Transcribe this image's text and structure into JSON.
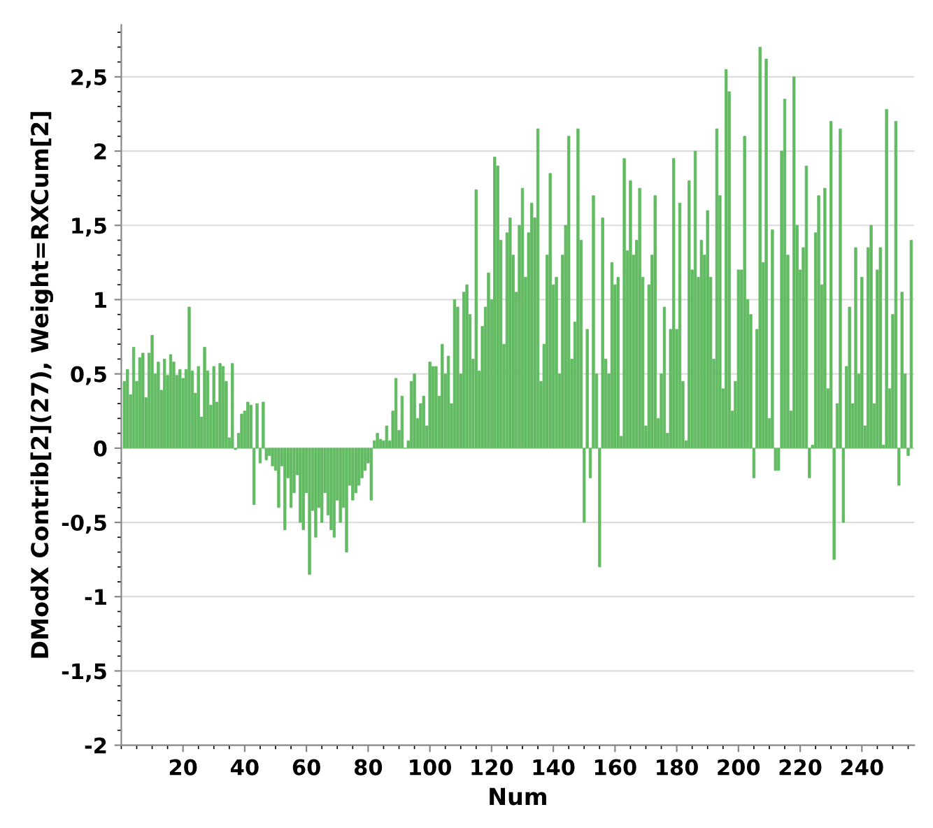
{
  "chart_data": {
    "type": "bar",
    "xlabel": "Num",
    "ylabel": "DModX Contrib[2](27), Weight=RXCum[2]",
    "color": "#62bb62",
    "x": [
      1,
      2,
      3,
      4,
      5,
      6,
      7,
      8,
      9,
      10,
      11,
      12,
      13,
      14,
      15,
      16,
      17,
      18,
      19,
      20,
      21,
      22,
      23,
      24,
      25,
      26,
      27,
      28,
      29,
      30,
      31,
      32,
      33,
      34,
      35,
      36,
      37,
      38,
      39,
      40,
      41,
      42,
      43,
      44,
      45,
      46,
      47,
      48,
      49,
      50,
      51,
      52,
      53,
      54,
      55,
      56,
      57,
      58,
      59,
      60,
      61,
      62,
      63,
      64,
      65,
      66,
      67,
      68,
      69,
      70,
      71,
      72,
      73,
      74,
      75,
      76,
      77,
      78,
      79,
      80,
      81,
      82,
      83,
      84,
      85,
      86,
      87,
      88,
      89,
      90,
      91,
      92,
      93,
      94,
      95,
      96,
      97,
      98,
      99,
      100,
      101,
      102,
      103,
      104,
      105,
      106,
      107,
      108,
      109,
      110,
      111,
      112,
      113,
      114,
      115,
      116,
      117,
      118,
      119,
      120,
      121,
      122,
      123,
      124,
      125,
      126,
      127,
      128,
      129,
      130,
      131,
      132,
      133,
      134,
      135,
      136,
      137,
      138,
      139,
      140,
      141,
      142,
      143,
      144,
      145,
      146,
      147,
      148,
      149,
      150,
      151,
      152,
      153,
      154,
      155,
      156,
      157,
      158,
      159,
      160,
      161,
      162,
      163,
      164,
      165,
      166,
      167,
      168,
      169,
      170,
      171,
      172,
      173,
      174,
      175,
      176,
      177,
      178,
      179,
      180,
      181,
      182,
      183,
      184,
      185,
      186,
      187,
      188,
      189,
      190,
      191,
      192,
      193,
      194,
      195,
      196,
      197,
      198,
      199,
      200,
      201,
      202,
      203,
      204,
      205,
      206,
      207,
      208,
      209,
      210,
      211,
      212,
      213,
      214,
      215,
      216,
      217,
      218,
      219,
      220,
      221,
      222,
      223,
      224,
      225,
      226,
      227,
      228,
      229,
      230,
      231,
      232,
      233,
      234,
      235,
      236,
      237,
      238,
      239,
      240,
      241,
      242,
      243,
      244,
      245,
      246,
      247,
      248,
      249,
      250,
      251,
      252,
      253,
      254,
      255,
      256
    ],
    "values": [
      0.45,
      0.53,
      0.36,
      0.68,
      0.45,
      0.61,
      0.64,
      0.34,
      0.64,
      0.76,
      0.5,
      0.58,
      0.39,
      0.6,
      0.49,
      0.63,
      0.58,
      0.49,
      0.53,
      0.47,
      0.53,
      0.95,
      0.52,
      0.37,
      0.55,
      0.21,
      0.68,
      0.52,
      0.29,
      0.55,
      0.31,
      0.57,
      0.55,
      0.45,
      0.07,
      0.57,
      -0.01,
      0.1,
      0.23,
      0.25,
      0.31,
      0.29,
      -0.38,
      0.3,
      -0.1,
      0.31,
      -0.08,
      -0.05,
      -0.12,
      -0.15,
      -0.4,
      -0.12,
      -0.55,
      -0.2,
      -0.4,
      -0.3,
      -0.18,
      -0.5,
      -0.55,
      -0.3,
      -0.85,
      -0.42,
      -0.6,
      -0.4,
      -0.5,
      -0.3,
      -0.45,
      -0.55,
      -0.6,
      -0.35,
      -0.5,
      -0.4,
      -0.7,
      -0.25,
      -0.35,
      -0.3,
      -0.25,
      -0.2,
      -0.15,
      -0.1,
      -0.35,
      0.05,
      0.1,
      0.06,
      0.05,
      0.15,
      0.05,
      0.25,
      0.47,
      0.12,
      0.35,
      0,
      0.05,
      0.45,
      0.5,
      0.2,
      0.3,
      0.35,
      0.15,
      0.58,
      0.55,
      0.55,
      0.35,
      0.7,
      0.5,
      0.62,
      0.3,
      1.0,
      0.95,
      0.5,
      1.05,
      1.1,
      0.9,
      0.6,
      1.74,
      0.52,
      0.82,
      0.95,
      1.18,
      1.0,
      1.96,
      1.9,
      1.4,
      0.7,
      1.45,
      1.55,
      1.3,
      1.05,
      1.5,
      1.75,
      1.15,
      1.45,
      1.65,
      1.55,
      2.15,
      0.45,
      0.7,
      1.3,
      1.85,
      1.1,
      1.15,
      0.5,
      1.3,
      1.5,
      2.1,
      0.6,
      0.85,
      2.15,
      1.4,
      -0.5,
      0.8,
      -0.2,
      1.7,
      0.5,
      -0.8,
      1.55,
      0.6,
      0.5,
      1.25,
      1.1,
      1.15,
      0.08,
      1.95,
      1.33,
      1.8,
      1.3,
      1.4,
      1.75,
      1.15,
      0.15,
      1.1,
      1.3,
      1.7,
      0.2,
      0.5,
      0.95,
      0.1,
      0.8,
      1.95,
      0.8,
      1.65,
      0.45,
      0.05,
      1.8,
      1.2,
      2.0,
      1.15,
      1.4,
      1.3,
      1.6,
      1.15,
      0.6,
      2.15,
      1.7,
      0.4,
      2.55,
      2.4,
      0.25,
      0.45,
      1.2,
      1.2,
      2.1,
      1.0,
      0.9,
      -0.2,
      0.8,
      2.7,
      1.25,
      2.62,
      0.2,
      1.47,
      -0.15,
      -0.15,
      2.0,
      2.35,
      1.3,
      0.25,
      2.5,
      1.5,
      1.2,
      1.35,
      1.9,
      -0.2,
      0.02,
      1.45,
      1.7,
      1.1,
      1.75,
      0.4,
      2.2,
      -0.75,
      0.3,
      2.15,
      -0.5,
      0.55,
      0.95,
      0.3,
      1.35,
      0.5,
      1.15,
      0.15,
      1.35,
      1.5,
      0.3,
      1.2,
      1.35,
      0.02,
      2.28,
      0.4,
      0.9,
      2.2,
      -0.25,
      1.05,
      0.5,
      -0.05,
      1.4
    ],
    "xlim": [
      0,
      257
    ],
    "xticks": [
      20,
      40,
      60,
      80,
      100,
      120,
      140,
      160,
      180,
      200,
      220,
      240
    ],
    "ylim": [
      -2,
      2.85
    ],
    "yticks": [
      {
        "value": -2,
        "label": "-2"
      },
      {
        "value": -1.5,
        "label": "-1,5"
      },
      {
        "value": -1,
        "label": "-1"
      },
      {
        "value": -0.5,
        "label": "-0,5"
      },
      {
        "value": 0,
        "label": "0"
      },
      {
        "value": 0.5,
        "label": "0,5"
      },
      {
        "value": 1,
        "label": "1"
      },
      {
        "value": 1.5,
        "label": "1,5"
      },
      {
        "value": 2,
        "label": "2"
      },
      {
        "value": 2.5,
        "label": "2,5"
      }
    ],
    "grid": "y"
  }
}
